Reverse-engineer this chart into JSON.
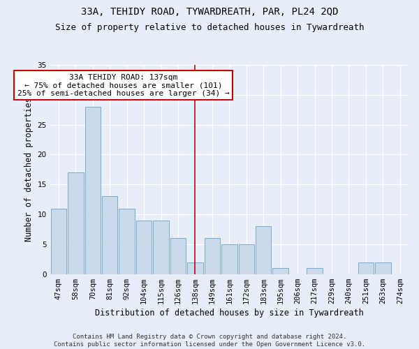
{
  "title": "33A, TEHIDY ROAD, TYWARDREATH, PAR, PL24 2QD",
  "subtitle": "Size of property relative to detached houses in Tywardreath",
  "xlabel": "Distribution of detached houses by size in Tywardreath",
  "ylabel": "Number of detached properties",
  "categories": [
    "47sqm",
    "58sqm",
    "70sqm",
    "81sqm",
    "92sqm",
    "104sqm",
    "115sqm",
    "126sqm",
    "138sqm",
    "149sqm",
    "161sqm",
    "172sqm",
    "183sqm",
    "195sqm",
    "206sqm",
    "217sqm",
    "229sqm",
    "240sqm",
    "251sqm",
    "263sqm",
    "274sqm"
  ],
  "values": [
    11,
    17,
    28,
    13,
    11,
    9,
    9,
    6,
    2,
    6,
    5,
    5,
    8,
    1,
    0,
    1,
    0,
    0,
    2,
    2,
    0
  ],
  "bar_color": "#c9daea",
  "bar_edge_color": "#7baac8",
  "vline_x": 8,
  "vline_color": "#cc0000",
  "annotation_text": "33A TEHIDY ROAD: 137sqm\n← 75% of detached houses are smaller (101)\n25% of semi-detached houses are larger (34) →",
  "annotation_box_color": "#ffffff",
  "annotation_box_edge": "#cc0000",
  "ylim": [
    0,
    35
  ],
  "yticks": [
    0,
    5,
    10,
    15,
    20,
    25,
    30,
    35
  ],
  "background_color": "#e8eef8",
  "plot_bg_color": "#e8eef8",
  "footer": "Contains HM Land Registry data © Crown copyright and database right 2024.\nContains public sector information licensed under the Open Government Licence v3.0.",
  "title_fontsize": 10,
  "subtitle_fontsize": 9,
  "axis_label_fontsize": 8.5,
  "tick_fontsize": 7.5,
  "annotation_fontsize": 8,
  "footer_fontsize": 6.5
}
